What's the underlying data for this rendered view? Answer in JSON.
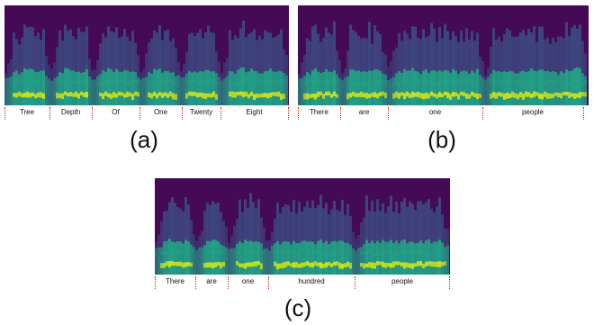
{
  "figure": {
    "panels": [
      {
        "id": "a",
        "caption": "(a)",
        "words": [
          "Tree",
          "Depth",
          "Of",
          "One",
          "Twenty",
          "Eight"
        ]
      },
      {
        "id": "b",
        "caption": "(b)",
        "words": [
          "There",
          "are",
          "one",
          "people"
        ]
      },
      {
        "id": "c",
        "caption": "(c)",
        "words": [
          "There",
          "are",
          "one",
          "hundred",
          "people"
        ]
      }
    ],
    "colors": {
      "background": "#440a55",
      "low": "#3b5a8c",
      "mid": "#21a585",
      "high": "#c8e020",
      "boundary": "#d02020"
    }
  }
}
